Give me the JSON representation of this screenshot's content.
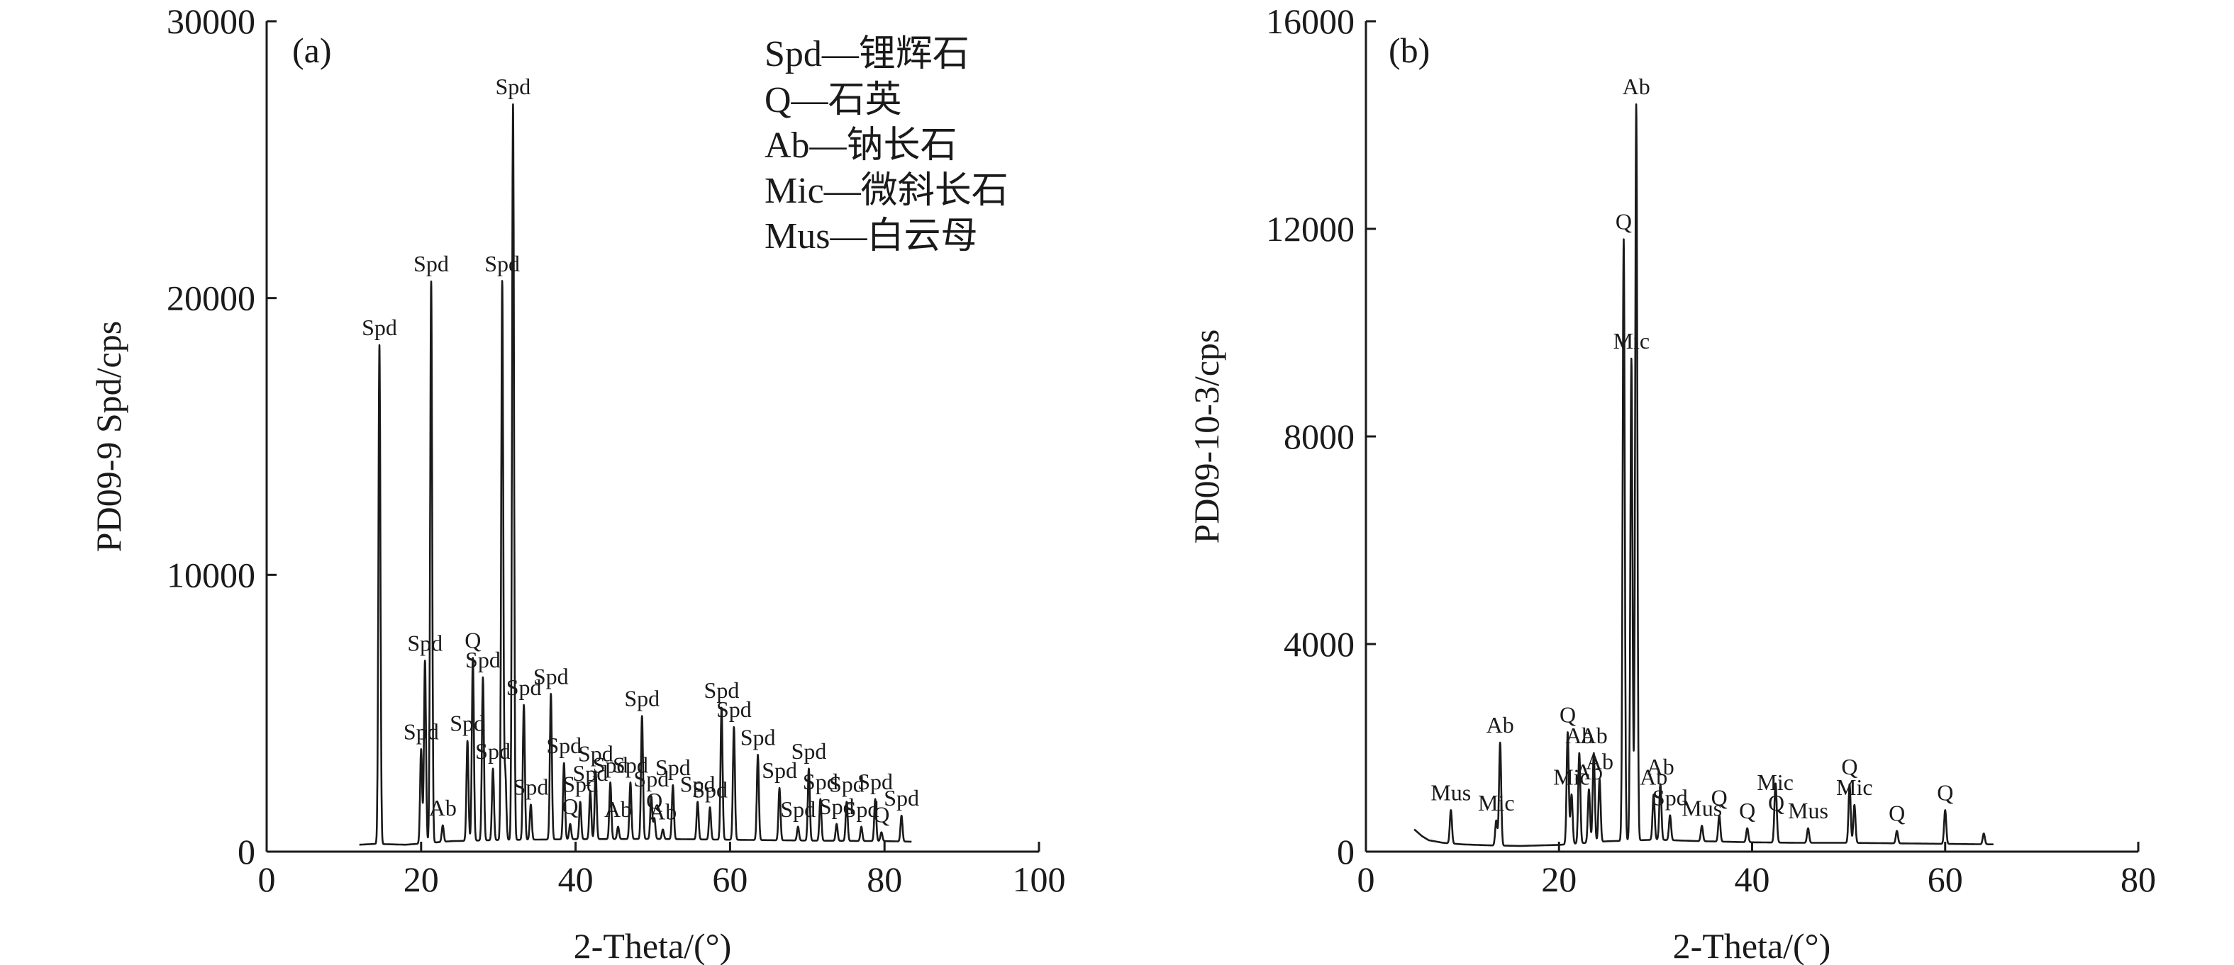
{
  "chart_data": [
    {
      "panel": "(a)",
      "type": "line",
      "xlabel": "2-Theta/(°)",
      "ylabel": "PD09-9 Spd/cps",
      "xlim": [
        0,
        100
      ],
      "ylim": [
        0,
        30000
      ],
      "xticks": [
        "0",
        "20",
        "40",
        "60",
        "80",
        "100"
      ],
      "yticks": [
        "0",
        "10000",
        "20000",
        "30000"
      ],
      "legend": {
        "placement": "top-right",
        "entries": [
          "Spd—锂辉石",
          "Q—石英",
          "Ab—钠长石",
          "Mic—微斜长石",
          "Mus—白云母"
        ]
      },
      "baseline": [
        [
          12.0,
          250
        ],
        [
          14.0,
          280
        ],
        [
          18.0,
          250
        ],
        [
          24.0,
          380
        ],
        [
          30.0,
          420
        ],
        [
          40.0,
          450
        ],
        [
          50.0,
          460
        ],
        [
          60.0,
          430
        ],
        [
          70.0,
          400
        ],
        [
          80.0,
          380
        ],
        [
          83.5,
          360
        ]
      ],
      "peaks": [
        {
          "x": 14.6,
          "y": 18300,
          "label": "Spd"
        },
        {
          "x": 20.0,
          "y": 3700,
          "label": "Spd"
        },
        {
          "x": 20.5,
          "y": 6900,
          "label": "Spd"
        },
        {
          "x": 21.3,
          "y": 20600,
          "label": "Spd"
        },
        {
          "x": 22.8,
          "y": 950,
          "label": "Ab"
        },
        {
          "x": 26.0,
          "y": 4000,
          "label": "Spd"
        },
        {
          "x": 26.7,
          "y": 7000,
          "label": "Q"
        },
        {
          "x": 28.0,
          "y": 6300,
          "label": "Spd"
        },
        {
          "x": 29.3,
          "y": 3000,
          "label": "Spd"
        },
        {
          "x": 30.5,
          "y": 20600,
          "label": "Spd"
        },
        {
          "x": 30.9,
          "y": 2800,
          "label": ""
        },
        {
          "x": 31.9,
          "y": 27000,
          "label": "Spd"
        },
        {
          "x": 33.3,
          "y": 5300,
          "label": "Spd"
        },
        {
          "x": 34.2,
          "y": 1700,
          "label": "Spd"
        },
        {
          "x": 36.8,
          "y": 5700,
          "label": "Spd"
        },
        {
          "x": 38.5,
          "y": 3200,
          "label": "Spd"
        },
        {
          "x": 39.3,
          "y": 1000,
          "label": "Q"
        },
        {
          "x": 40.6,
          "y": 1800,
          "label": "Spd"
        },
        {
          "x": 41.9,
          "y": 2200,
          "label": "Spd"
        },
        {
          "x": 42.6,
          "y": 2900,
          "label": "Spd"
        },
        {
          "x": 44.5,
          "y": 2500,
          "label": "Spd"
        },
        {
          "x": 45.5,
          "y": 900,
          "label": "Ab"
        },
        {
          "x": 47.1,
          "y": 2500,
          "label": "Spd"
        },
        {
          "x": 48.6,
          "y": 4900,
          "label": "Spd"
        },
        {
          "x": 49.8,
          "y": 2000,
          "label": "Spd"
        },
        {
          "x": 50.2,
          "y": 1200,
          "label": "Q"
        },
        {
          "x": 51.3,
          "y": 800,
          "label": "Ab"
        },
        {
          "x": 52.6,
          "y": 2400,
          "label": "Spd"
        },
        {
          "x": 55.8,
          "y": 1800,
          "label": "Spd"
        },
        {
          "x": 57.4,
          "y": 1600,
          "label": "Spd"
        },
        {
          "x": 58.9,
          "y": 5200,
          "label": "Spd"
        },
        {
          "x": 60.5,
          "y": 4500,
          "label": "Spd"
        },
        {
          "x": 63.6,
          "y": 3500,
          "label": "Spd"
        },
        {
          "x": 66.4,
          "y": 2300,
          "label": "Spd"
        },
        {
          "x": 68.8,
          "y": 900,
          "label": "Spd"
        },
        {
          "x": 70.2,
          "y": 3000,
          "label": "Spd"
        },
        {
          "x": 71.7,
          "y": 1900,
          "label": "Spd"
        },
        {
          "x": 73.8,
          "y": 1000,
          "label": "Spd"
        },
        {
          "x": 75.1,
          "y": 1800,
          "label": "Spd"
        },
        {
          "x": 77.0,
          "y": 900,
          "label": "Spd"
        },
        {
          "x": 78.8,
          "y": 1900,
          "label": "Spd"
        },
        {
          "x": 79.6,
          "y": 700,
          "label": "Q"
        },
        {
          "x": 82.2,
          "y": 1300,
          "label": "Spd"
        }
      ]
    },
    {
      "panel": "(b)",
      "type": "line",
      "xlabel": "2-Theta/(°)",
      "ylabel": "PD09-10-3/cps",
      "xlim": [
        0,
        80
      ],
      "ylim": [
        0,
        16000
      ],
      "xticks": [
        "0",
        "20",
        "40",
        "60",
        "80"
      ],
      "yticks": [
        "0",
        "4000",
        "8000",
        "12000",
        "16000"
      ],
      "baseline": [
        [
          5.0,
          430
        ],
        [
          5.8,
          300
        ],
        [
          6.5,
          220
        ],
        [
          8.0,
          170
        ],
        [
          10.0,
          140
        ],
        [
          13.0,
          120
        ],
        [
          16.0,
          110
        ],
        [
          20.0,
          130
        ],
        [
          25.0,
          200
        ],
        [
          30.0,
          230
        ],
        [
          35.0,
          200
        ],
        [
          40.0,
          180
        ],
        [
          45.0,
          170
        ],
        [
          50.0,
          170
        ],
        [
          55.0,
          160
        ],
        [
          60.0,
          150
        ],
        [
          65.0,
          140
        ]
      ],
      "peaks": [
        {
          "x": 8.8,
          "y": 800,
          "label": "Mus"
        },
        {
          "x": 13.5,
          "y": 600,
          "label": "Mic"
        },
        {
          "x": 13.9,
          "y": 2100,
          "label": "Ab"
        },
        {
          "x": 20.9,
          "y": 2300,
          "label": "Q"
        },
        {
          "x": 21.3,
          "y": 1100,
          "label": "Mic"
        },
        {
          "x": 22.1,
          "y": 1900,
          "label": "Ab"
        },
        {
          "x": 23.1,
          "y": 1200,
          "label": "Ab"
        },
        {
          "x": 23.6,
          "y": 1900,
          "label": "Ab"
        },
        {
          "x": 24.2,
          "y": 1400,
          "label": "Ab"
        },
        {
          "x": 26.7,
          "y": 11800,
          "label": "Q"
        },
        {
          "x": 27.5,
          "y": 9500,
          "label": "Mic"
        },
        {
          "x": 28.0,
          "y": 14400,
          "label": "Ab"
        },
        {
          "x": 29.8,
          "y": 1100,
          "label": "Ab"
        },
        {
          "x": 30.5,
          "y": 1300,
          "label": "Ab"
        },
        {
          "x": 31.5,
          "y": 700,
          "label": "Spd"
        },
        {
          "x": 34.8,
          "y": 500,
          "label": "Mus"
        },
        {
          "x": 36.6,
          "y": 700,
          "label": "Q"
        },
        {
          "x": 39.5,
          "y": 450,
          "label": "Q"
        },
        {
          "x": 42.4,
          "y": 1000,
          "label": "Mic"
        },
        {
          "x": 42.5,
          "y": 600,
          "label": "Q"
        },
        {
          "x": 45.8,
          "y": 450,
          "label": "Mus"
        },
        {
          "x": 50.1,
          "y": 1300,
          "label": "Q"
        },
        {
          "x": 50.6,
          "y": 900,
          "label": "Mic"
        },
        {
          "x": 55.0,
          "y": 400,
          "label": "Q"
        },
        {
          "x": 60.0,
          "y": 800,
          "label": "Q"
        },
        {
          "x": 64.0,
          "y": 350,
          "label": ""
        }
      ]
    }
  ]
}
